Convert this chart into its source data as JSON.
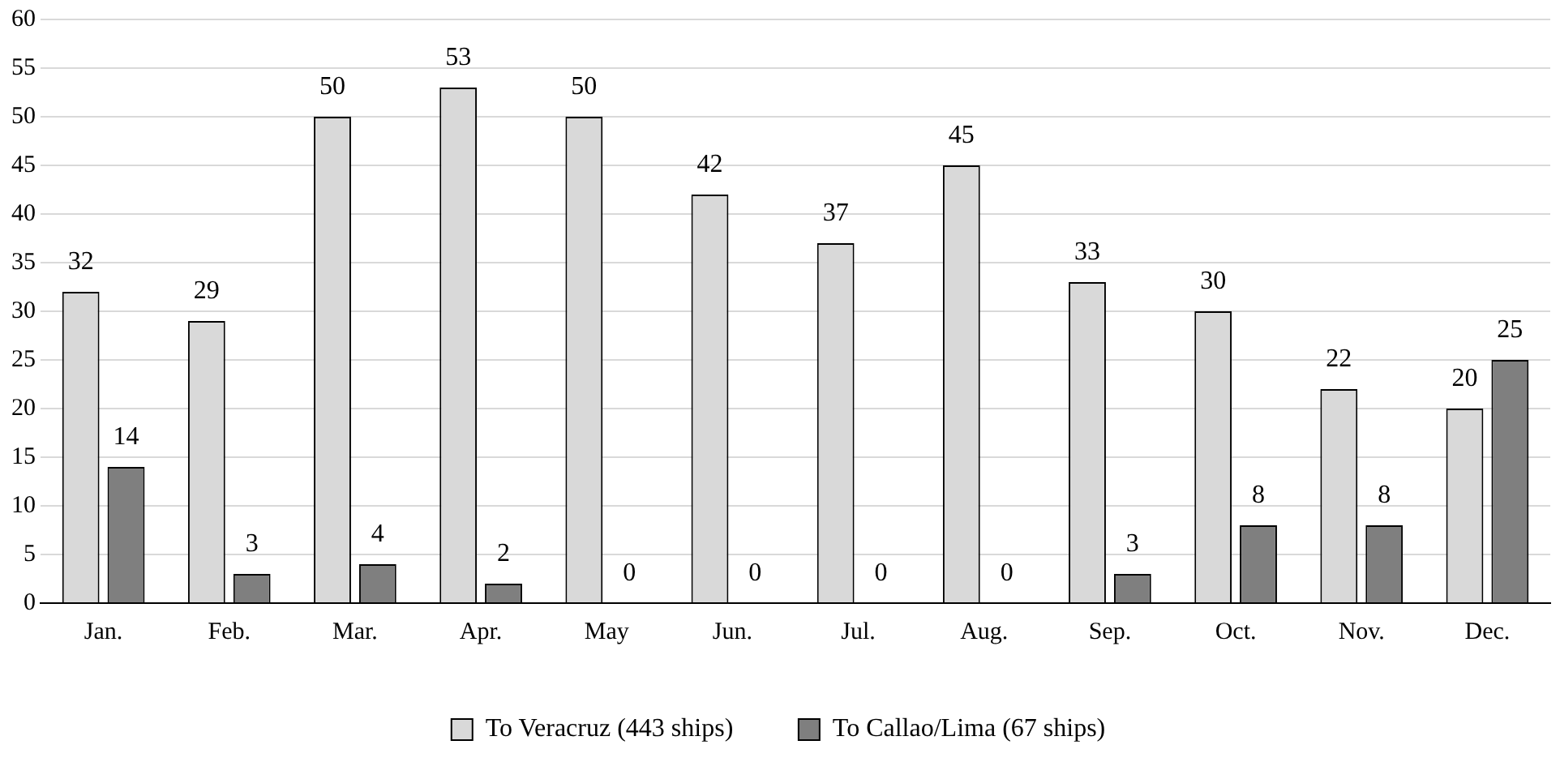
{
  "chart_data": {
    "type": "bar",
    "categories": [
      "Jan.",
      "Feb.",
      "Mar.",
      "Apr.",
      "May",
      "Jun.",
      "Jul.",
      "Aug.",
      "Sep.",
      "Oct.",
      "Nov.",
      "Dec."
    ],
    "series": [
      {
        "name": "To Veracruz (443 ships)",
        "color": "#d9d9d9",
        "values": [
          32,
          29,
          50,
          53,
          50,
          42,
          37,
          45,
          33,
          30,
          22,
          20
        ]
      },
      {
        "name": "To Callao/Lima (67 ships)",
        "color": "#7f7f7f",
        "values": [
          14,
          3,
          4,
          2,
          0,
          0,
          0,
          0,
          3,
          8,
          8,
          25
        ]
      }
    ],
    "ylim": [
      0,
      60
    ],
    "yticks": [
      0,
      5,
      10,
      15,
      20,
      25,
      30,
      35,
      40,
      45,
      50,
      55,
      60
    ],
    "grid": "y",
    "legend": "bottom",
    "data_labels": true
  }
}
